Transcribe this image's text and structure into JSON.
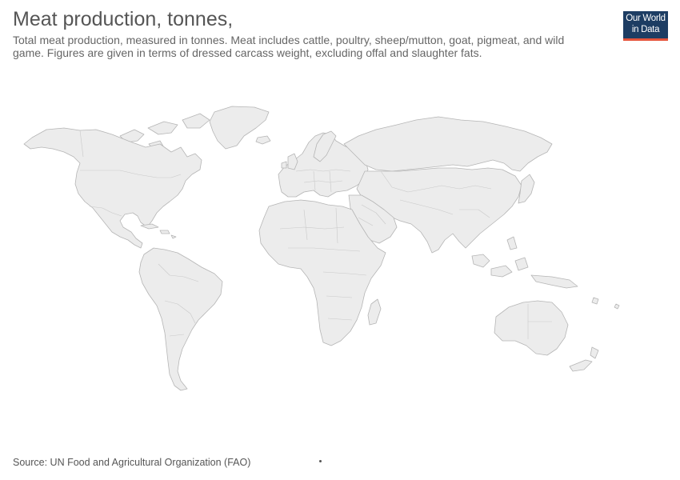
{
  "header": {
    "title": "Meat production, tonnes,",
    "subtitle": "Total meat production, measured in tonnes. Meat includes cattle, poultry, sheep/mutton, goat, pigmeat, and wild game. Figures are given in terms of dressed carcass weight, excluding offal and slaughter fats."
  },
  "logo": {
    "line1": "Our World",
    "line2": "in Data",
    "colors": {
      "background": "#1d3d63",
      "accent": "#e5543b"
    }
  },
  "map": {
    "fill_color": "#ececec",
    "border_color": "#b5b5b5"
  },
  "footer": {
    "source": "Source: UN Food and Agricultural Organization (FAO)"
  }
}
